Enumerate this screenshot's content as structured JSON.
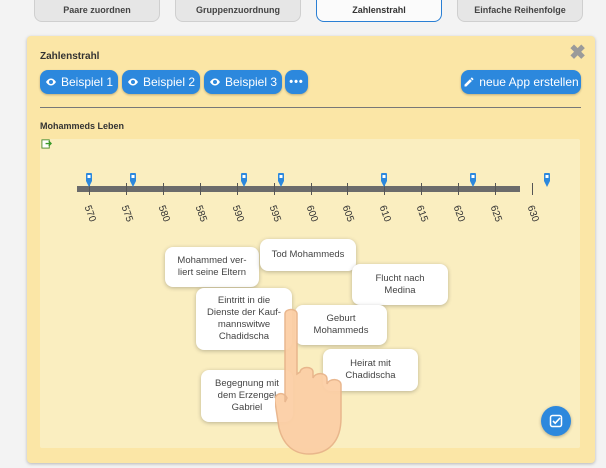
{
  "tabs": [
    {
      "label": "Paare zuordnen"
    },
    {
      "label": "Gruppenzuordnung"
    },
    {
      "label": "Zahlenstrahl"
    },
    {
      "label": "Einfache Reihenfolge"
    }
  ],
  "panel": {
    "title": "Zahlenstrahl",
    "buttons": {
      "example1": "Beispiel 1",
      "example2": "Beispiel 2",
      "example3": "Beispiel 3",
      "more": "•••",
      "new_app": "neue App erstellen"
    },
    "app_title": "Mohammeds Leben"
  },
  "timeline": {
    "ticks": [
      "570",
      "575",
      "580",
      "585",
      "590",
      "595",
      "600",
      "605",
      "610",
      "615",
      "620",
      "625",
      "630"
    ],
    "pins": [
      570,
      576,
      591,
      596,
      610,
      622,
      632
    ]
  },
  "cards": [
    {
      "text": "Mohammed ver-\nliert seine Eltern"
    },
    {
      "text": "Tod Mohammeds"
    },
    {
      "text": "Flucht nach\nMedina"
    },
    {
      "text": "Eintritt in die\nDienste der Kauf-\nmannswitwe\nChadidscha"
    },
    {
      "text": "Geburt\nMohammeds"
    },
    {
      "text": "Heirat mit\nChadidscha"
    },
    {
      "text": "Begegnung mit\ndem Erzengel\nGabriel"
    }
  ],
  "colors": {
    "accent": "#2c88dd",
    "panel_bg": "#fbe6a6",
    "canvas_bg": "#faeec0",
    "axis": "#6b6b6b"
  },
  "icons": {
    "close": "close-icon",
    "eye": "eye-icon",
    "pencil": "pencil-icon",
    "export": "export-icon",
    "check": "check-icon",
    "pin": "pin-icon",
    "hand": "hand-pointer-icon"
  }
}
